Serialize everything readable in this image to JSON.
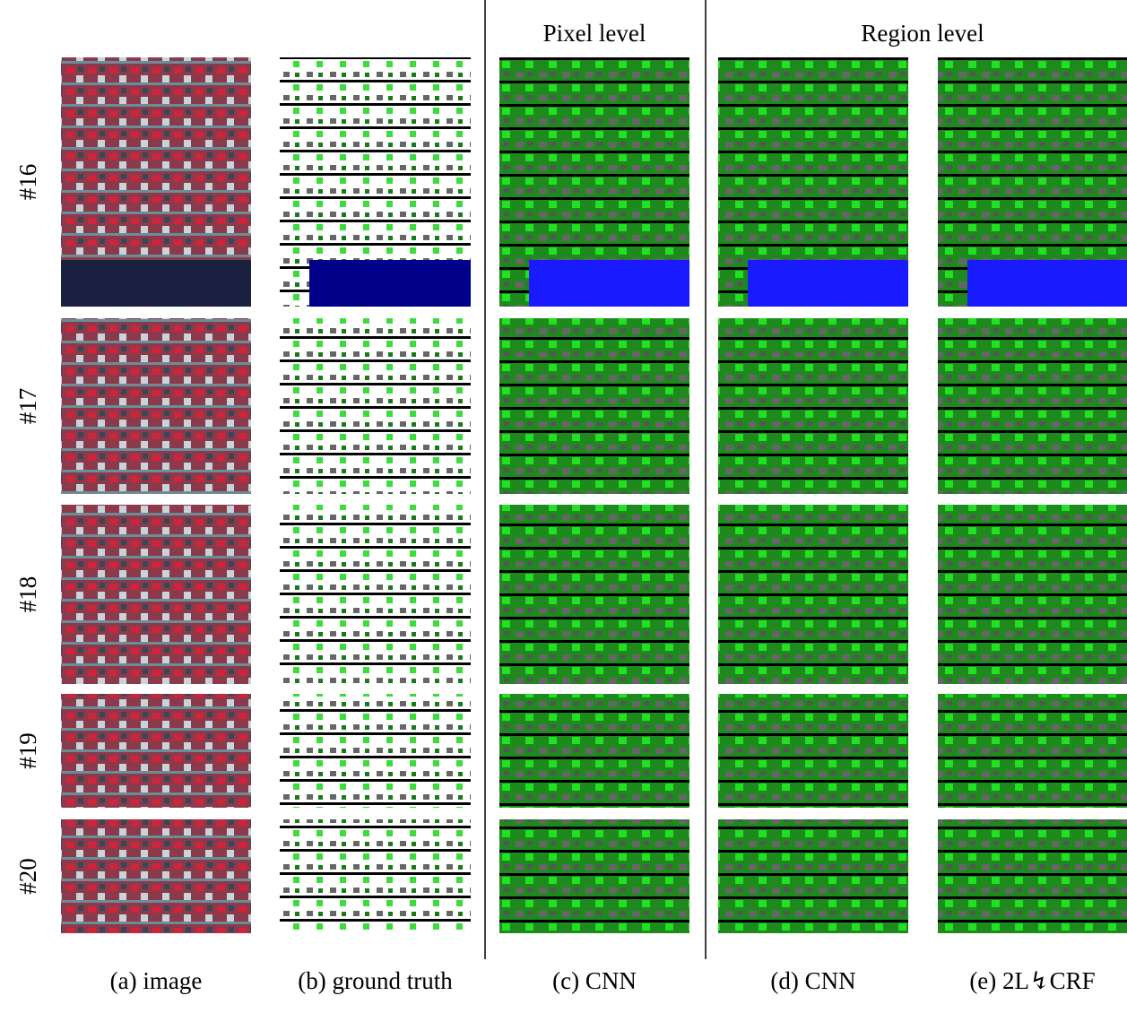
{
  "header": {
    "groups": [
      "Pixel level",
      "Region level"
    ]
  },
  "rows": [
    "#16",
    "#17",
    "#18",
    "#19",
    "#20"
  ],
  "captions": [
    "(a) image",
    "(b) ground truth",
    "(c) CNN",
    "(d) CNN",
    "(e) 2L↯CRF"
  ]
}
